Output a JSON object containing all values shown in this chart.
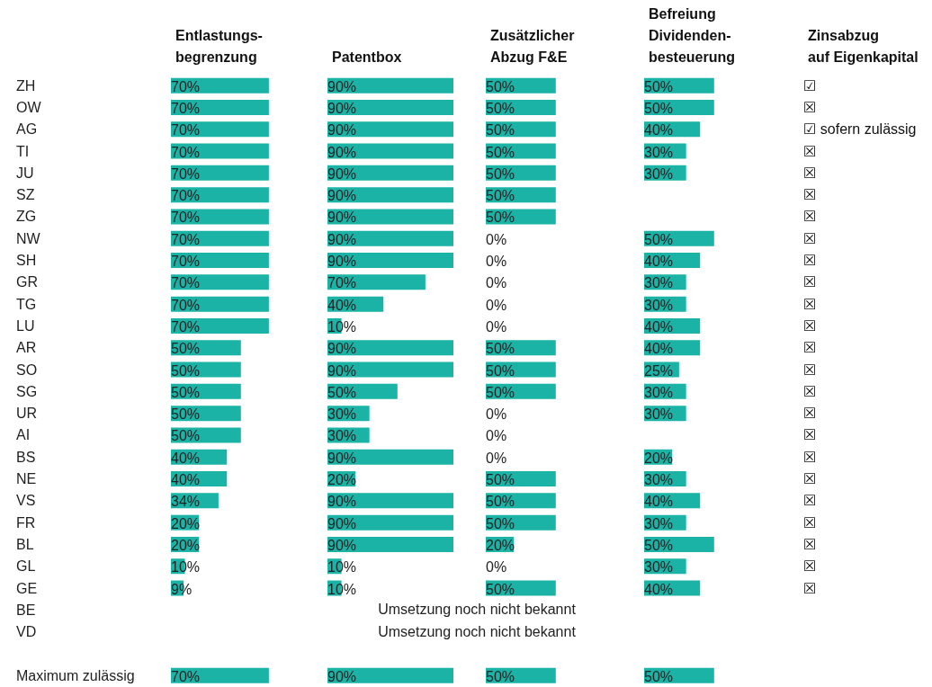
{
  "chart_data": [
    {
      "type": "bar",
      "orientation": "horizontal",
      "title": "Entlastungs-\nbegrenzung",
      "color": "#1ab3a6",
      "tick_labels": "y",
      "categories": [
        "ZH",
        "OW",
        "AG",
        "TI",
        "JU",
        "SZ",
        "ZG",
        "NW",
        "SH",
        "GR",
        "TG",
        "LU",
        "AR",
        "SO",
        "SG",
        "UR",
        "AI",
        "BS",
        "NE",
        "VS",
        "FR",
        "BL",
        "GL",
        "GE",
        "BE",
        "VD",
        null,
        "Maximum zulässig"
      ],
      "values": [
        70,
        70,
        70,
        70,
        70,
        70,
        70,
        70,
        70,
        70,
        70,
        70,
        50,
        50,
        50,
        50,
        50,
        40,
        40,
        34,
        20,
        20,
        10,
        9,
        null,
        null,
        null,
        70
      ],
      "value_labels": [
        "70%",
        "70%",
        "70%",
        "70%",
        "70%",
        "70%",
        "70%",
        "70%",
        "70%",
        "70%",
        "70%",
        "70%",
        "50%",
        "50%",
        "50%",
        "50%",
        "50%",
        "40%",
        "40%",
        "34%",
        "20%",
        "20%",
        "10%",
        "9%",
        null,
        null,
        null,
        "70%"
      ]
    },
    {
      "type": "bar",
      "orientation": "horizontal",
      "title": "Patentbox",
      "color": "#1ab3a6",
      "tick_labels": false,
      "values": [
        90,
        90,
        90,
        90,
        90,
        90,
        90,
        90,
        90,
        70,
        40,
        10,
        90,
        90,
        50,
        30,
        30,
        90,
        20,
        90,
        90,
        90,
        10,
        10,
        null,
        null,
        null,
        90
      ],
      "value_labels": [
        "90%",
        "90%",
        "90%",
        "90%",
        "90%",
        "90%",
        "90%",
        "90%",
        "90%",
        "70%",
        "40%",
        "10%",
        "90%",
        "90%",
        "50%",
        "30%",
        "30%",
        "90%",
        "20%",
        "90%",
        "90%",
        "90%",
        "10%",
        "10%",
        null,
        null,
        null,
        "90%"
      ],
      "annotations": [
        "Umsetzung noch nicht bekannt",
        "Umsetzung noch nicht bekannt"
      ]
    },
    {
      "type": "bar",
      "orientation": "horizontal",
      "title": "Zusätzlicher\nAbzug F&E",
      "color": "#1ab3a6",
      "tick_labels": false,
      "values": [
        50,
        50,
        50,
        50,
        50,
        50,
        50,
        0,
        0,
        0,
        0,
        0,
        50,
        50,
        50,
        0,
        0,
        0,
        50,
        50,
        50,
        20,
        0,
        50,
        null,
        null,
        null,
        50
      ],
      "value_labels": [
        "50%",
        "50%",
        "50%",
        "50%",
        "50%",
        "50%",
        "50%",
        "0%",
        "0%",
        "0%",
        "0%",
        "0%",
        "50%",
        "50%",
        "50%",
        "0%",
        "0%",
        "0%",
        "50%",
        "50%",
        "50%",
        "20%",
        "0%",
        "50%",
        null,
        null,
        null,
        "50%"
      ]
    },
    {
      "type": "bar",
      "orientation": "horizontal",
      "title": "Befreiung\nDividenden-\nbesteuerung",
      "color": "#1ab3a6",
      "tick_labels": false,
      "values": [
        50,
        50,
        40,
        30,
        30,
        null,
        null,
        50,
        40,
        30,
        30,
        40,
        40,
        25,
        30,
        30,
        null,
        20,
        30,
        40,
        30,
        50,
        30,
        40,
        null,
        null,
        null,
        50
      ],
      "value_labels": [
        "50%",
        "50%",
        "40%",
        "30%",
        "30%",
        null,
        null,
        "50%",
        "40%",
        "30%",
        "30%",
        "40%",
        "40%",
        "25%",
        "30%",
        "30%",
        null,
        "20%",
        "30%",
        "40%",
        "30%",
        "50%",
        "30%",
        "40%",
        null,
        null,
        null,
        "50%"
      ]
    },
    {
      "type": "other",
      "title": "Zinsabzug\nauf Eigenkapital",
      "annotations": [
        "☑",
        "☒",
        "☑ sofern zulässig",
        "☒",
        "☒",
        "☒",
        "☒",
        "☒",
        "☒",
        "☒",
        "☒",
        "☒",
        "☒",
        "☒",
        "☒",
        "☒",
        "☒",
        "☒",
        "☒",
        "☒",
        "☒",
        "☒",
        "☒",
        "☒"
      ]
    }
  ]
}
